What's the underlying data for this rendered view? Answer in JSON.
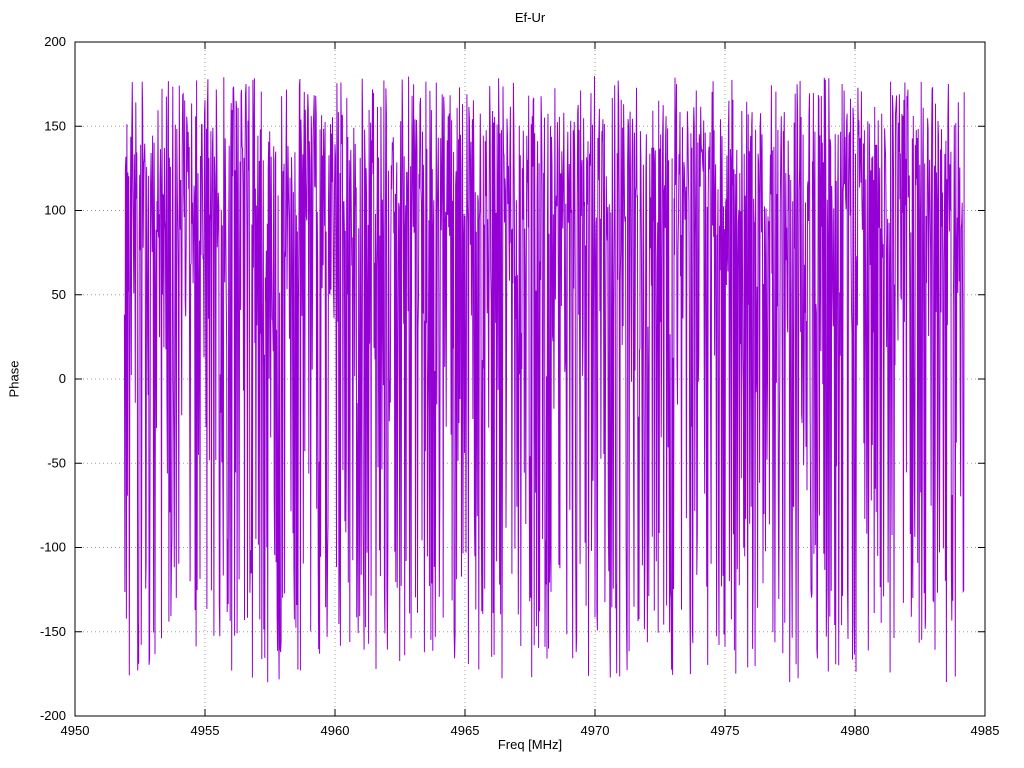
{
  "page": {
    "background": "#ffffff",
    "text_color": "#000000"
  },
  "chart_data": {
    "type": "line",
    "title": "Ef-Ur",
    "xlabel": "Freq [MHz]",
    "ylabel": "Phase",
    "xlim": [
      4950,
      4985
    ],
    "ylim": [
      -200,
      200
    ],
    "xticks": [
      4950,
      4955,
      4960,
      4965,
      4970,
      4975,
      4980,
      4985
    ],
    "yticks": [
      -200,
      -150,
      -100,
      -50,
      0,
      50,
      100,
      150,
      200
    ],
    "grid": "dotted",
    "grid_color": "#9e9e9e",
    "border_color": "#000000",
    "legend": "none",
    "series": [
      {
        "name": "Ef-Ur phase",
        "color": "#9400d3",
        "x_start": 4951.9,
        "x_end": 4984.2,
        "n_points": 1700,
        "seed": 42,
        "description": "Wrapped phase (degrees) vs frequency: dense band around +90..+165 deg with frequent wrap spikes reaching down to -180 deg across the whole band",
        "y_mixture": [
          {
            "weight": 0.45,
            "min": 85,
            "max": 160
          },
          {
            "weight": 0.08,
            "min": 160,
            "max": 180
          },
          {
            "weight": 0.17,
            "min": 0,
            "max": 85
          },
          {
            "weight": 0.12,
            "min": -100,
            "max": 0
          },
          {
            "weight": 0.18,
            "min": -180,
            "max": -100
          }
        ]
      }
    ]
  }
}
